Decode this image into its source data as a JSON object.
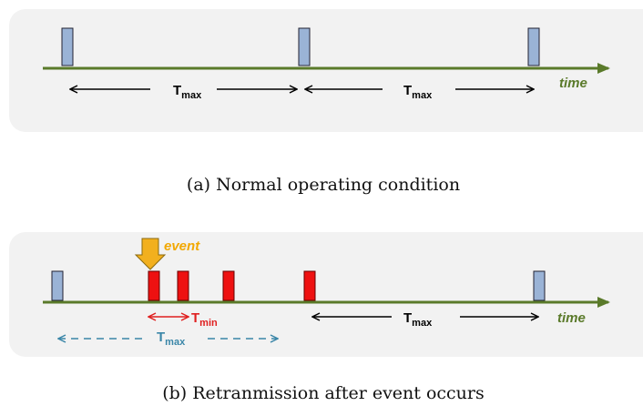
{
  "panel_a": {
    "axis_label": "time",
    "intervals": [
      {
        "main": "T",
        "sub": "max"
      },
      {
        "main": "T",
        "sub": "max"
      }
    ],
    "caption": "(a) Normal operating condition"
  },
  "panel_b": {
    "axis_label": "time",
    "event_label": "event",
    "min_interval": {
      "main": "T",
      "sub": "min"
    },
    "max_interval": {
      "main": "T",
      "sub": "max"
    },
    "dashed_interval": {
      "main": "T",
      "sub": "max"
    },
    "caption": "(b) Retranmission after event occurs"
  }
}
